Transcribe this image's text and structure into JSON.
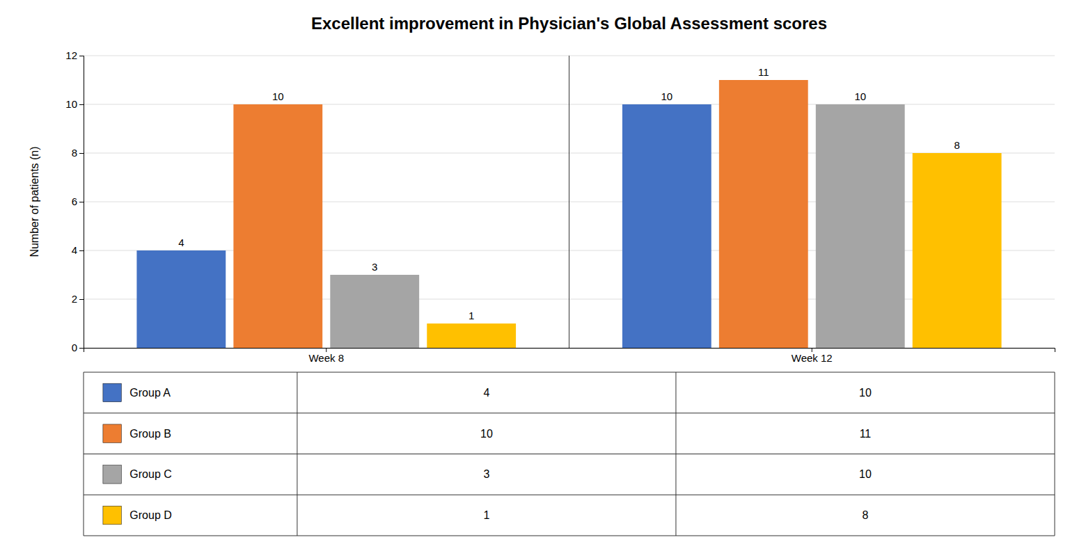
{
  "chart_data": {
    "type": "bar",
    "title": "Excellent improvement in Physician's Global Assessment scores",
    "y_label": "Number of patients (n)",
    "categories": [
      "Week 8",
      "Week 12"
    ],
    "series": [
      {
        "name": "Group A",
        "color": "#4472C4",
        "values": [
          4,
          10
        ]
      },
      {
        "name": "Group B",
        "color": "#ED7D31",
        "values": [
          10,
          11
        ]
      },
      {
        "name": "Group C",
        "color": "#A5A5A5",
        "values": [
          3,
          10
        ]
      },
      {
        "name": "Group D",
        "color": "#FFC000",
        "values": [
          1,
          8
        ]
      }
    ],
    "ylim": [
      0,
      12
    ],
    "yticks": [
      0,
      2,
      4,
      6,
      8,
      10,
      12
    ],
    "grid": true,
    "data_labels": true
  }
}
